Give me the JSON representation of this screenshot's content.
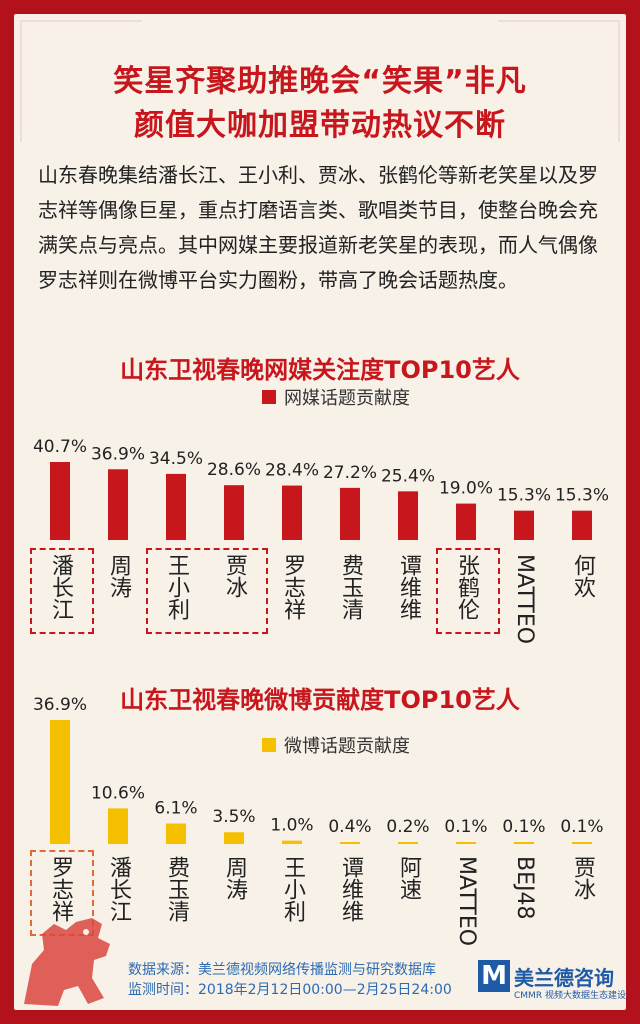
{
  "title_line1": "笑星齐聚助推晚会“笑果”非凡",
  "title_line2": "颜值大咖加盟带动热议不断",
  "intro": "山东春晚集结潘长江、王小利、贾冰、张鹤伦等新老笑星以及罗志祥等偶像巨星，重点打磨语言类、歌唱类节目，使整台晚会充满笑点与亮点。其中网媒主要报道新老笑星的表现，而人气偶像罗志祥则在微博平台实力圈粉，带高了晚会话题热度。",
  "chart_data": [
    {
      "type": "bar",
      "title": "山东卫视春晚网媒关注度TOP10艺人",
      "categories": [
        "潘长江",
        "周涛",
        "王小利",
        "贾冰",
        "罗志祥",
        "费玉清",
        "谭维维",
        "张鹤伦",
        "MATTEO",
        "何欢"
      ],
      "series": [
        {
          "name": "网媒话题贡献度",
          "values": [
            40.7,
            36.9,
            34.5,
            28.6,
            28.4,
            27.2,
            25.4,
            19.0,
            15.3,
            15.3
          ]
        }
      ],
      "value_labels": [
        "40.7%",
        "36.9%",
        "34.5%",
        "28.6%",
        "28.4%",
        "27.2%",
        "25.4%",
        "19.0%",
        "15.3%",
        "15.3%"
      ],
      "color": "#c8161d",
      "ylim": [
        0,
        40.7
      ],
      "highlight": [
        [
          "潘长江"
        ],
        [
          "王小利",
          "贾冰"
        ],
        [
          "张鹤伦"
        ]
      ]
    },
    {
      "type": "bar",
      "title": "山东卫视春晚微博贡献度TOP10艺人",
      "categories": [
        "罗志祥",
        "潘长江",
        "费玉清",
        "周涛",
        "王小利",
        "谭维维",
        "阿速",
        "MATTEO",
        "BEJ48",
        "贾冰"
      ],
      "series": [
        {
          "name": "微博话题贡献度",
          "values": [
            36.9,
            10.6,
            6.1,
            3.5,
            1.0,
            0.4,
            0.2,
            0.1,
            0.1,
            0.1
          ]
        }
      ],
      "value_labels": [
        "36.9%",
        "10.6%",
        "6.1%",
        "3.5%",
        "1.0%",
        "0.4%",
        "0.2%",
        "0.1%",
        "0.1%",
        "0.1%"
      ],
      "color": "#f5c000",
      "ylim": [
        0,
        36.9
      ],
      "highlight": [
        [
          "罗志祥"
        ]
      ]
    }
  ],
  "footer": {
    "source": "数据来源：美兰德视频网络传播监测与研究数据库",
    "period": "监测时间：2018年2月12日00:00—2月25日24:00",
    "brand_mark": "M",
    "brand_name": "美兰德咨询",
    "brand_abbr": "CMMR",
    "brand_sub": "视频大数据生态建设者"
  }
}
